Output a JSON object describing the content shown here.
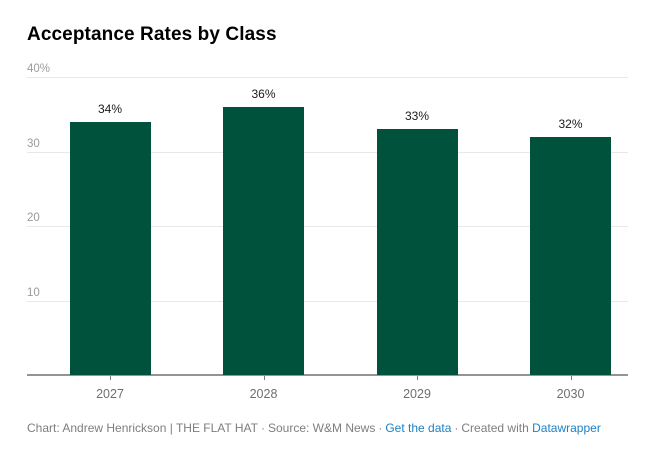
{
  "title": "Acceptance Rates by Class",
  "chart_data": {
    "type": "bar",
    "title": "Acceptance Rates by Class",
    "categories": [
      "2027",
      "2028",
      "2029",
      "2030"
    ],
    "values": [
      34,
      36,
      33,
      32
    ],
    "value_labels": [
      "34%",
      "36%",
      "33%",
      "32%"
    ],
    "xlabel": "",
    "ylabel": "",
    "ylim": [
      0,
      40
    ],
    "yticks": [
      {
        "value": 10,
        "label": "10"
      },
      {
        "value": 20,
        "label": "20"
      },
      {
        "value": 30,
        "label": "30"
      },
      {
        "value": 40,
        "label": "40%"
      }
    ],
    "grid": true,
    "legend": "none",
    "bar_color": "#00523D"
  },
  "colors": {
    "bar": "#00523D",
    "link": "#1d81c4",
    "footer_text": "#7e7e7e",
    "gridline": "#e8e8e8",
    "axis_line": "#949494"
  },
  "footer": {
    "credit": "Chart: Andrew Henrickson | THE FLAT HAT",
    "separator": "·",
    "source": "Source: W&M News",
    "get_data_label": "Get the data",
    "created_with_label": "Created with",
    "datawrapper_label": "Datawrapper"
  }
}
